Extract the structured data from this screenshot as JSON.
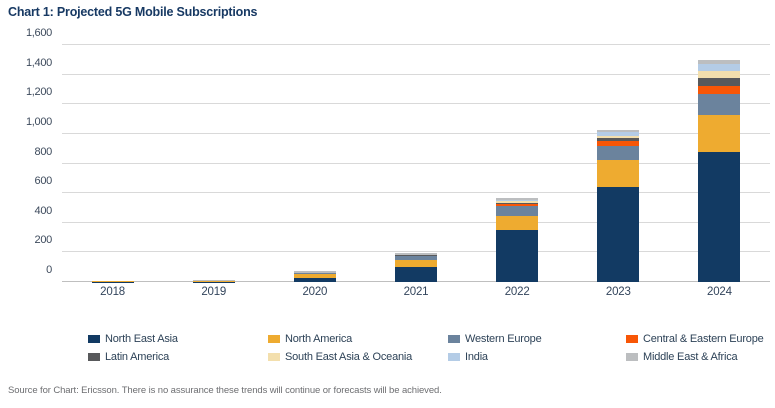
{
  "title": "Chart 1: Projected 5G Mobile Subscriptions",
  "source_note": "Source for Chart: Ericsson. There is no assurance these trends will continue or forecasts will be achieved.",
  "colors": {
    "title_text": "#173963",
    "axis_text": "#3d4a5c",
    "gridline": "#d9d9d9",
    "zero_line": "#bfbfbf",
    "legend_text": "#2d4257",
    "source_text": "#6d6e71"
  },
  "chart_data": {
    "type": "bar",
    "stacked": true,
    "title": "Chart 1: Projected 5G Mobile Subscriptions",
    "xlabel": "",
    "ylabel": "",
    "grid": true,
    "legend_position": "bottom",
    "ylim": [
      0,
      1600
    ],
    "ytick_step": 200,
    "ytick_labels": [
      "0",
      "200",
      "400",
      "600",
      "800",
      "1,000",
      "1,200",
      "1,400",
      "1,600"
    ],
    "categories": [
      "2018",
      "2019",
      "2020",
      "2021",
      "2022",
      "2023",
      "2024"
    ],
    "series": [
      {
        "name": "North East Asia",
        "color": "#123a63",
        "values": [
          1,
          3,
          30,
          100,
          350,
          640,
          880
        ]
      },
      {
        "name": "North America",
        "color": "#eeab30",
        "values": [
          3,
          7,
          25,
          52,
          95,
          185,
          250
        ]
      },
      {
        "name": "Western Europe",
        "color": "#6b839d",
        "values": [
          0,
          0,
          8,
          25,
          65,
          95,
          140
        ]
      },
      {
        "name": "Central & Eastern Europe",
        "color": "#f85606",
        "values": [
          0,
          0,
          0,
          2,
          18,
          35,
          55
        ]
      },
      {
        "name": "Latin America",
        "color": "#58595b",
        "values": [
          0,
          0,
          0,
          1,
          7,
          16,
          50
        ]
      },
      {
        "name": "South East Asia & Oceania",
        "color": "#f3dfad",
        "values": [
          0,
          0,
          0,
          1,
          12,
          14,
          50
        ]
      },
      {
        "name": "India",
        "color": "#b4cce6",
        "values": [
          0,
          0,
          0,
          1,
          7,
          28,
          45
        ]
      },
      {
        "name": "Middle East & Africa",
        "color": "#bcbec0",
        "values": [
          0,
          2,
          12,
          11,
          15,
          17,
          30
        ]
      }
    ]
  }
}
